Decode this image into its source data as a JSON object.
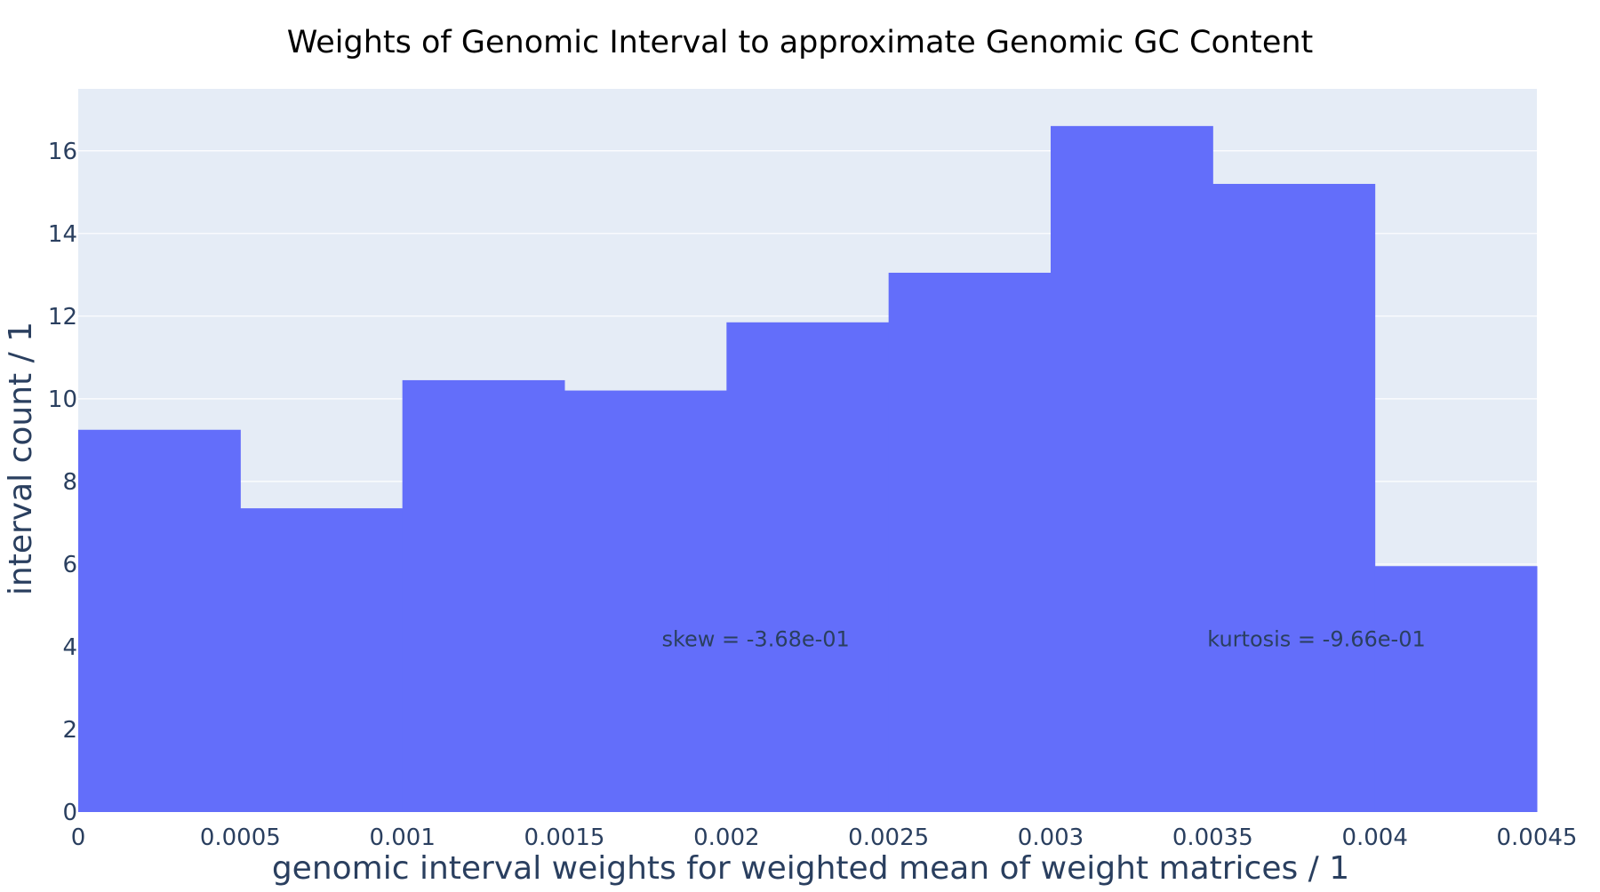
{
  "chart_data": {
    "type": "bar",
    "title": "Weights of Genomic Interval to approximate Genomic GC Content",
    "xlabel": "genomic interval weights for weighted mean of weight matrices / 1",
    "ylabel": "interval count / 1",
    "bin_edges": [
      0,
      0.0005,
      0.001,
      0.0015,
      0.002,
      0.0025,
      0.003,
      0.0035,
      0.004,
      0.0045
    ],
    "values": [
      9.25,
      7.35,
      10.45,
      10.2,
      11.85,
      13.05,
      16.6,
      15.2,
      5.95
    ],
    "xlim": [
      0,
      0.0045
    ],
    "ylim": [
      0,
      17.5
    ],
    "x_ticks": [
      0,
      0.0005,
      0.001,
      0.0015,
      0.002,
      0.0025,
      0.003,
      0.0035,
      0.004,
      0.0045
    ],
    "x_tick_labels": [
      "0",
      "0.0005",
      "0.001",
      "0.0015",
      "0.002",
      "0.0025",
      "0.003",
      "0.0035",
      "0.004",
      "0.0045"
    ],
    "y_ticks": [
      0,
      2,
      4,
      6,
      8,
      10,
      12,
      14,
      16
    ],
    "y_tick_labels": [
      "0",
      "2",
      "4",
      "6",
      "8",
      "10",
      "12",
      "14",
      "16"
    ],
    "grid": true,
    "colors": {
      "bar": "#636efa",
      "plot_bg": "#e5ecf6",
      "grid": "#ffffff",
      "text": "#2a3f5f",
      "title": "#000000"
    },
    "annotations": [
      {
        "text": "skew = -3.68e-01",
        "x": 0.00209,
        "y": 4.2
      },
      {
        "text": "kurtosis = -9.66e-01",
        "x": 0.00382,
        "y": 4.2
      }
    ]
  }
}
